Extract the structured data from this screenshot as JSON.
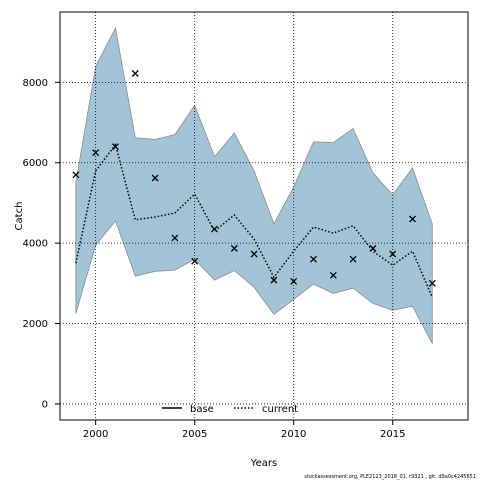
{
  "chart_data": {
    "type": "line",
    "xlabel": "Years",
    "ylabel": "Catch",
    "xlim": [
      1998.2,
      2018.8
    ],
    "ylim": [
      -400,
      9750
    ],
    "xticks": [
      2000,
      2005,
      2010,
      2015
    ],
    "yticks": [
      0,
      2000,
      4000,
      6000,
      8000
    ],
    "grid": true,
    "legend_position": "bottom-center",
    "years": [
      1999,
      2000,
      2001,
      2002,
      2003,
      2004,
      2005,
      2006,
      2007,
      2008,
      2009,
      2010,
      2011,
      2012,
      2013,
      2014,
      2015,
      2016,
      2017
    ],
    "band": {
      "color": "#a3c4d6",
      "upper": [
        5500,
        8400,
        9350,
        6620,
        6580,
        6700,
        7430,
        6150,
        6740,
        5800,
        4480,
        5400,
        6520,
        6500,
        6850,
        5750,
        5200,
        5870,
        4480
      ],
      "lower": [
        2250,
        3950,
        4550,
        3180,
        3300,
        3330,
        3600,
        3080,
        3320,
        2900,
        2230,
        2600,
        2980,
        2750,
        2880,
        2500,
        2330,
        2430,
        1500
      ]
    },
    "series": [
      {
        "name": "base",
        "style": "solid",
        "color": "#000000",
        "values": []
      },
      {
        "name": "current",
        "style": "dotted",
        "color": "#000000",
        "band_color": "#a3c4d6",
        "values": [
          3500,
          5800,
          6450,
          4580,
          4650,
          4750,
          5220,
          4300,
          4700,
          4100,
          3150,
          3800,
          4400,
          4250,
          4430,
          3800,
          3450,
          3800,
          2650
        ]
      }
    ],
    "observed": {
      "marker": "x",
      "values": [
        5700,
        6250,
        6400,
        8220,
        5620,
        4130,
        3550,
        4350,
        3870,
        3730,
        3080,
        3050,
        3600,
        3200,
        3600,
        3870,
        3730,
        4600,
        3000
      ]
    }
  },
  "footer": "stockassessment.org, PLE2123_2018_01, r9321 , git: d9a0c4245651"
}
